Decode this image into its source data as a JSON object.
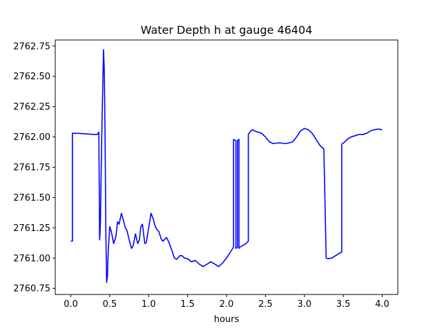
{
  "chart_data": {
    "type": "line",
    "title": "Water Depth h at gauge 46404",
    "xlabel": "hours",
    "ylabel": "",
    "xlim": [
      -0.2,
      4.2
    ],
    "ylim": [
      2760.7,
      2762.8
    ],
    "xticks": [
      0.0,
      0.5,
      1.0,
      1.5,
      2.0,
      2.5,
      3.0,
      3.5,
      4.0
    ],
    "xtick_labels": [
      "0.0",
      "0.5",
      "1.0",
      "1.5",
      "2.0",
      "2.5",
      "3.0",
      "3.5",
      "4.0"
    ],
    "yticks": [
      2760.75,
      2761.0,
      2761.25,
      2761.5,
      2761.75,
      2762.0,
      2762.25,
      2762.5,
      2762.75
    ],
    "ytick_labels": [
      "2760.75",
      "2761.00",
      "2761.25",
      "2761.50",
      "2761.75",
      "2762.00",
      "2762.25",
      "2762.50",
      "2762.75"
    ],
    "grid": false,
    "legend": "none",
    "series": [
      {
        "color": "#0000ff",
        "x": [
          0.0,
          0.02,
          0.02,
          0.1,
          0.2,
          0.3,
          0.34,
          0.36,
          0.37,
          0.375,
          0.38,
          0.4,
          0.42,
          0.43,
          0.44,
          0.45,
          0.46,
          0.47,
          0.48,
          0.5,
          0.52,
          0.55,
          0.58,
          0.6,
          0.62,
          0.65,
          0.68,
          0.7,
          0.72,
          0.75,
          0.78,
          0.8,
          0.83,
          0.86,
          0.88,
          0.9,
          0.92,
          0.95,
          0.97,
          1.0,
          1.03,
          1.06,
          1.08,
          1.1,
          1.13,
          1.16,
          1.18,
          1.2,
          1.23,
          1.26,
          1.3,
          1.33,
          1.36,
          1.4,
          1.43,
          1.46,
          1.5,
          1.55,
          1.6,
          1.65,
          1.7,
          1.75,
          1.8,
          1.85,
          1.9,
          1.95,
          2.0,
          2.05,
          2.08,
          2.09,
          2.09,
          2.12,
          2.12,
          2.14,
          2.14,
          2.16,
          2.16,
          2.17,
          2.17,
          2.2,
          2.25,
          2.28,
          2.28,
          2.3,
          2.33,
          2.36,
          2.4,
          2.45,
          2.5,
          2.55,
          2.6,
          2.65,
          2.7,
          2.75,
          2.8,
          2.85,
          2.9,
          2.95,
          3.0,
          3.05,
          3.1,
          3.15,
          3.2,
          3.25,
          3.28,
          3.28,
          3.3,
          3.35,
          3.4,
          3.45,
          3.48,
          3.48,
          3.52,
          3.55,
          3.6,
          3.65,
          3.7,
          3.75,
          3.8,
          3.85,
          3.9,
          3.95,
          4.0
        ],
        "y": [
          2761.14,
          2761.14,
          2762.03,
          2762.03,
          2762.025,
          2762.02,
          2762.02,
          2762.04,
          2761.15,
          2761.2,
          2761.3,
          2762.1,
          2762.72,
          2762.55,
          2762.0,
          2761.2,
          2760.8,
          2760.85,
          2761.05,
          2761.26,
          2761.22,
          2761.12,
          2761.18,
          2761.3,
          2761.28,
          2761.37,
          2761.3,
          2761.25,
          2761.23,
          2761.15,
          2761.08,
          2761.1,
          2761.2,
          2761.12,
          2761.15,
          2761.26,
          2761.28,
          2761.12,
          2761.13,
          2761.25,
          2761.37,
          2761.32,
          2761.27,
          2761.24,
          2761.22,
          2761.16,
          2761.14,
          2761.15,
          2761.17,
          2761.13,
          2761.06,
          2761.0,
          2760.99,
          2761.02,
          2761.02,
          2761.0,
          2760.995,
          2760.97,
          2760.98,
          2760.95,
          2760.93,
          2760.95,
          2760.97,
          2760.95,
          2760.93,
          2760.96,
          2761.0,
          2761.05,
          2761.08,
          2761.09,
          2761.98,
          2761.97,
          2761.08,
          2761.09,
          2761.97,
          2761.98,
          2761.08,
          2761.09,
          2761.09,
          2761.1,
          2761.12,
          2761.14,
          2762.02,
          2762.04,
          2762.06,
          2762.05,
          2762.04,
          2762.03,
          2762.0,
          2761.96,
          2761.945,
          2761.95,
          2761.95,
          2761.945,
          2761.95,
          2761.96,
          2762.0,
          2762.05,
          2762.07,
          2762.06,
          2762.03,
          2761.98,
          2761.93,
          2761.9,
          2761.01,
          2761.0,
          2760.995,
          2761.0,
          2761.02,
          2761.04,
          2761.05,
          2761.94,
          2761.96,
          2761.98,
          2762.0,
          2762.01,
          2762.02,
          2762.02,
          2762.03,
          2762.05,
          2762.06,
          2762.065,
          2762.06
        ]
      }
    ]
  }
}
